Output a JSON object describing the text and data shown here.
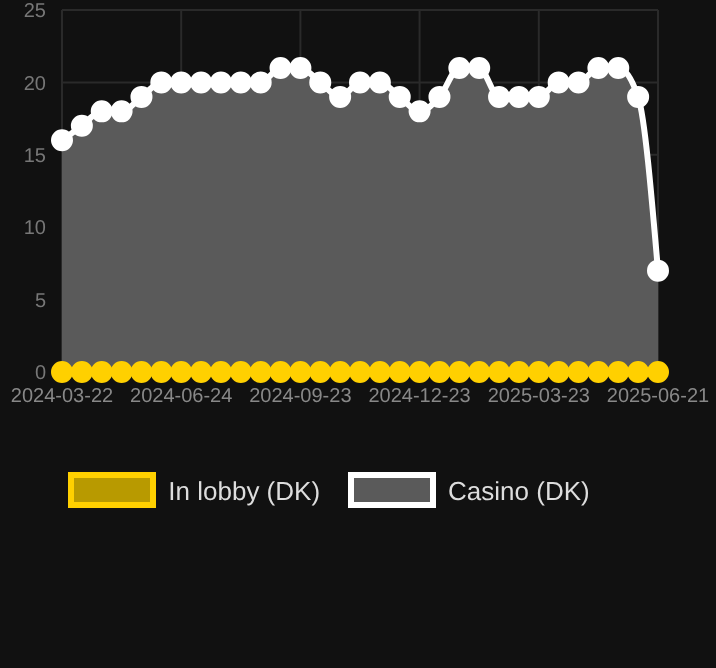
{
  "chart_data": {
    "type": "area",
    "categories": [
      "2024-03-22",
      null,
      null,
      null,
      null,
      null,
      "2024-06-24",
      null,
      null,
      null,
      null,
      null,
      "2024-09-23",
      null,
      null,
      null,
      null,
      null,
      "2024-12-23",
      null,
      null,
      null,
      null,
      null,
      "2025-03-23",
      null,
      null,
      null,
      null,
      null,
      "2025-06-21"
    ],
    "series": [
      {
        "name": "In lobby (DK)",
        "type": "line",
        "color": "#ffd000",
        "values": [
          0,
          0,
          0,
          0,
          0,
          0,
          0,
          0,
          0,
          0,
          0,
          0,
          0,
          0,
          0,
          0,
          0,
          0,
          0,
          0,
          0,
          0,
          0,
          0,
          0,
          0,
          0,
          0,
          0,
          0,
          0
        ]
      },
      {
        "name": "Casino (DK)",
        "color": "#ffffff",
        "values": [
          16,
          17,
          18,
          18,
          19,
          20,
          20,
          20,
          20,
          20,
          20,
          21,
          21,
          20,
          19,
          20,
          20,
          19,
          18,
          19,
          21,
          21,
          19,
          19,
          19,
          20,
          20,
          21,
          21,
          19,
          7
        ]
      }
    ],
    "ylim": [
      0,
      25
    ],
    "yticks": [
      0,
      5,
      10,
      15,
      20,
      25
    ],
    "grid": true,
    "legend": "bottom",
    "marker": "circle"
  }
}
